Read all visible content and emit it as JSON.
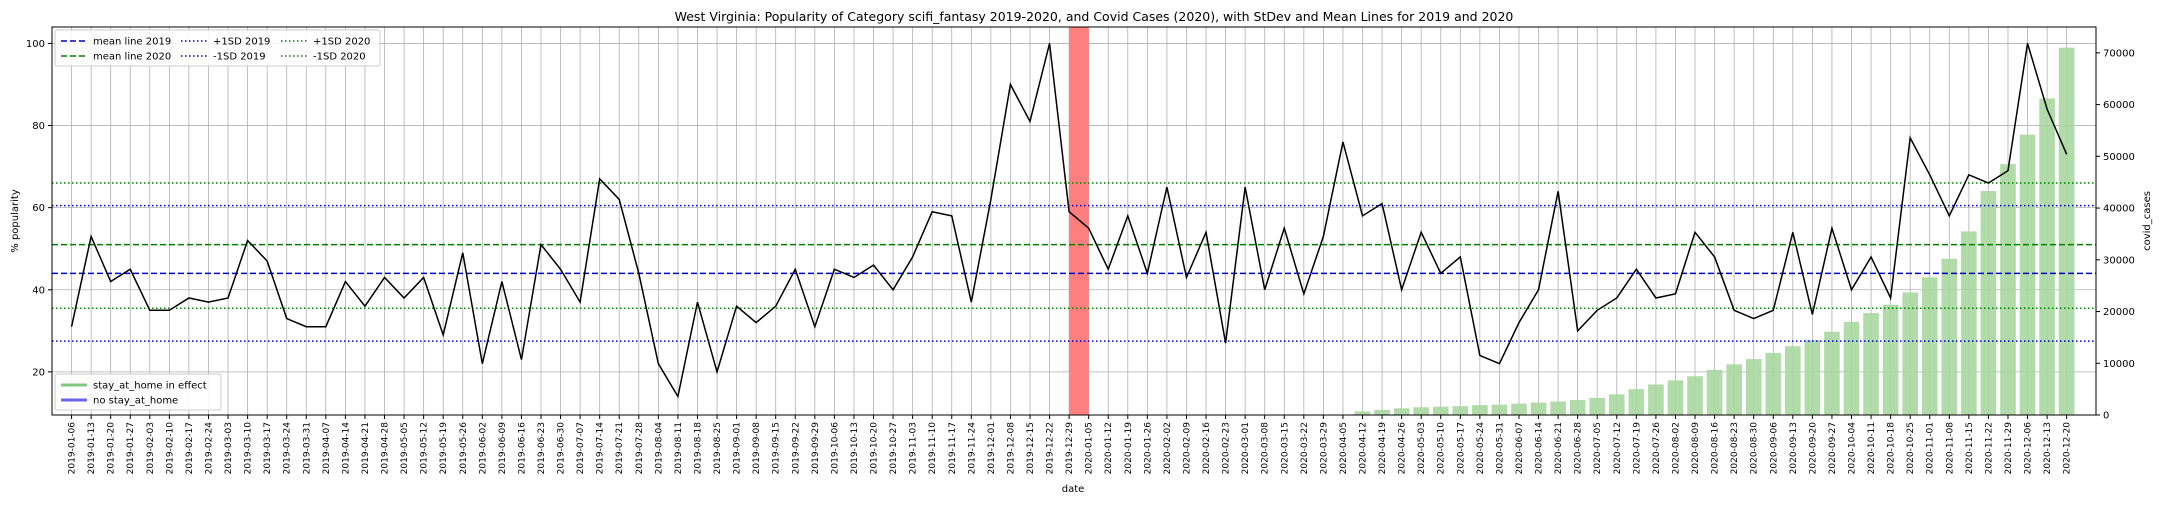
{
  "chart_data": {
    "type": "line",
    "title": "West Virginia: Popularity of Category scifi_fantasy 2019-2020, and Covid Cases (2020), with StDev and Mean Lines for 2019 and 2020",
    "xlabel": "date",
    "ylabel": "% popularity",
    "y2label": "covid_cases",
    "ylim": [
      9.5,
      104
    ],
    "y2lim": [
      0,
      75000
    ],
    "yticks": [
      20,
      40,
      60,
      80,
      100
    ],
    "y2ticks": [
      0,
      10000,
      20000,
      30000,
      40000,
      50000,
      60000,
      70000
    ],
    "grid": true,
    "categories": [
      "2019-01-06",
      "2019-01-13",
      "2019-01-20",
      "2019-01-27",
      "2019-02-03",
      "2019-02-10",
      "2019-02-17",
      "2019-02-24",
      "2019-03-03",
      "2019-03-10",
      "2019-03-17",
      "2019-03-24",
      "2019-03-31",
      "2019-04-07",
      "2019-04-14",
      "2019-04-21",
      "2019-04-28",
      "2019-05-05",
      "2019-05-12",
      "2019-05-19",
      "2019-05-26",
      "2019-06-02",
      "2019-06-09",
      "2019-06-16",
      "2019-06-23",
      "2019-06-30",
      "2019-07-07",
      "2019-07-14",
      "2019-07-21",
      "2019-07-28",
      "2019-08-04",
      "2019-08-11",
      "2019-08-18",
      "2019-08-25",
      "2019-09-01",
      "2019-09-08",
      "2019-09-15",
      "2019-09-22",
      "2019-09-29",
      "2019-10-06",
      "2019-10-13",
      "2019-10-20",
      "2019-10-27",
      "2019-11-03",
      "2019-11-10",
      "2019-11-17",
      "2019-11-24",
      "2019-12-01",
      "2019-12-08",
      "2019-12-15",
      "2019-12-22",
      "2019-12-29",
      "2020-01-05",
      "2020-01-12",
      "2020-01-19",
      "2020-01-26",
      "2020-02-02",
      "2020-02-09",
      "2020-02-16",
      "2020-02-23",
      "2020-03-01",
      "2020-03-08",
      "2020-03-15",
      "2020-03-22",
      "2020-03-29",
      "2020-04-05",
      "2020-04-12",
      "2020-04-19",
      "2020-04-26",
      "2020-05-03",
      "2020-05-10",
      "2020-05-17",
      "2020-05-24",
      "2020-05-31",
      "2020-06-07",
      "2020-06-14",
      "2020-06-21",
      "2020-06-28",
      "2020-07-05",
      "2020-07-12",
      "2020-07-19",
      "2020-07-26",
      "2020-08-02",
      "2020-08-09",
      "2020-08-16",
      "2020-08-23",
      "2020-08-30",
      "2020-09-06",
      "2020-09-13",
      "2020-09-20",
      "2020-09-27",
      "2020-10-04",
      "2020-10-11",
      "2020-10-18",
      "2020-10-25",
      "2020-11-01",
      "2020-11-08",
      "2020-11-15",
      "2020-11-22",
      "2020-11-29",
      "2020-12-06",
      "2020-12-13",
      "2020-12-20"
    ],
    "series": [
      {
        "name": "popularity",
        "color": "#000000",
        "values": [
          31,
          53,
          42,
          45,
          35,
          35,
          38,
          37,
          38,
          52,
          47,
          33,
          31,
          31,
          42,
          36,
          43,
          38,
          43,
          29,
          49,
          22,
          42,
          23,
          51,
          45,
          37,
          67,
          62,
          44,
          22,
          14,
          37,
          20,
          36,
          32,
          36,
          45,
          31,
          45,
          43,
          46,
          40,
          48,
          59,
          58,
          37,
          62,
          90,
          81,
          100,
          59,
          55,
          45,
          58,
          44,
          65,
          43,
          54,
          27,
          65,
          40,
          55,
          39,
          53,
          76,
          58,
          61,
          40,
          54,
          44,
          48,
          24,
          22,
          32,
          40,
          64,
          30,
          35,
          38,
          45,
          38,
          39,
          54,
          48,
          35,
          33,
          35,
          54,
          34,
          55,
          40,
          48,
          38,
          77,
          68,
          58,
          68,
          66,
          69,
          100,
          84,
          73
        ]
      }
    ],
    "covid_cases": {
      "name": "covid_cases",
      "color": "#a8d8a0",
      "values": [
        0,
        0,
        0,
        0,
        0,
        0,
        0,
        0,
        0,
        0,
        0,
        0,
        0,
        0,
        0,
        0,
        0,
        0,
        0,
        0,
        0,
        0,
        0,
        0,
        0,
        0,
        0,
        0,
        0,
        0,
        0,
        0,
        0,
        0,
        0,
        0,
        0,
        0,
        0,
        0,
        0,
        0,
        0,
        0,
        0,
        0,
        0,
        0,
        0,
        0,
        0,
        0,
        0,
        0,
        0,
        0,
        0,
        0,
        0,
        0,
        0,
        0,
        0,
        0,
        0,
        0,
        700,
        1000,
        1300,
        1500,
        1600,
        1700,
        1900,
        2000,
        2200,
        2400,
        2600,
        2900,
        3300,
        4000,
        5000,
        5900,
        6700,
        7500,
        8700,
        9800,
        10800,
        12000,
        13300,
        14500,
        16100,
        18000,
        19700,
        21300,
        23700,
        26600,
        30200,
        35500,
        43300,
        48500,
        54200,
        61200,
        71000
      ]
    },
    "highlight": {
      "start": "2019-12-29",
      "end": "2020-01-05",
      "color": "#ff7f7f"
    },
    "reference_lines": [
      {
        "label": "mean line 2019",
        "value": 44,
        "color": "#0000cc",
        "style": "dashed"
      },
      {
        "label": "mean line 2020",
        "value": 51,
        "color": "#008000",
        "style": "dashed"
      },
      {
        "label": "+1SD 2019",
        "value": 60.5,
        "color": "#0000cc",
        "style": "dotted"
      },
      {
        "label": "-1SD 2019",
        "value": 27.5,
        "color": "#0000cc",
        "style": "dotted"
      },
      {
        "label": "+1SD 2020",
        "value": 66,
        "color": "#008000",
        "style": "dotted"
      },
      {
        "label": "-1SD 2020",
        "value": 35.5,
        "color": "#008000",
        "style": "dotted"
      }
    ],
    "legend_top": {
      "position": "top-left",
      "entries": [
        {
          "label": "mean line 2019",
          "color": "#0000cc",
          "style": "dashed"
        },
        {
          "label": "mean line 2020",
          "color": "#008000",
          "style": "dashed"
        },
        {
          "label": "+1SD 2019",
          "color": "#0000cc",
          "style": "dotted"
        },
        {
          "label": "-1SD 2019",
          "color": "#0000cc",
          "style": "dotted"
        },
        {
          "label": "+1SD 2020",
          "color": "#008000",
          "style": "dotted"
        },
        {
          "label": "-1SD 2020",
          "color": "#008000",
          "style": "dotted"
        }
      ]
    },
    "legend_bottom": {
      "position": "bottom-left",
      "entries": [
        {
          "label": "stay_at_home in effect",
          "color": "#7fc97f",
          "style": "solid"
        },
        {
          "label": "no stay_at_home",
          "color": "#6666ee",
          "style": "solid"
        }
      ]
    }
  }
}
